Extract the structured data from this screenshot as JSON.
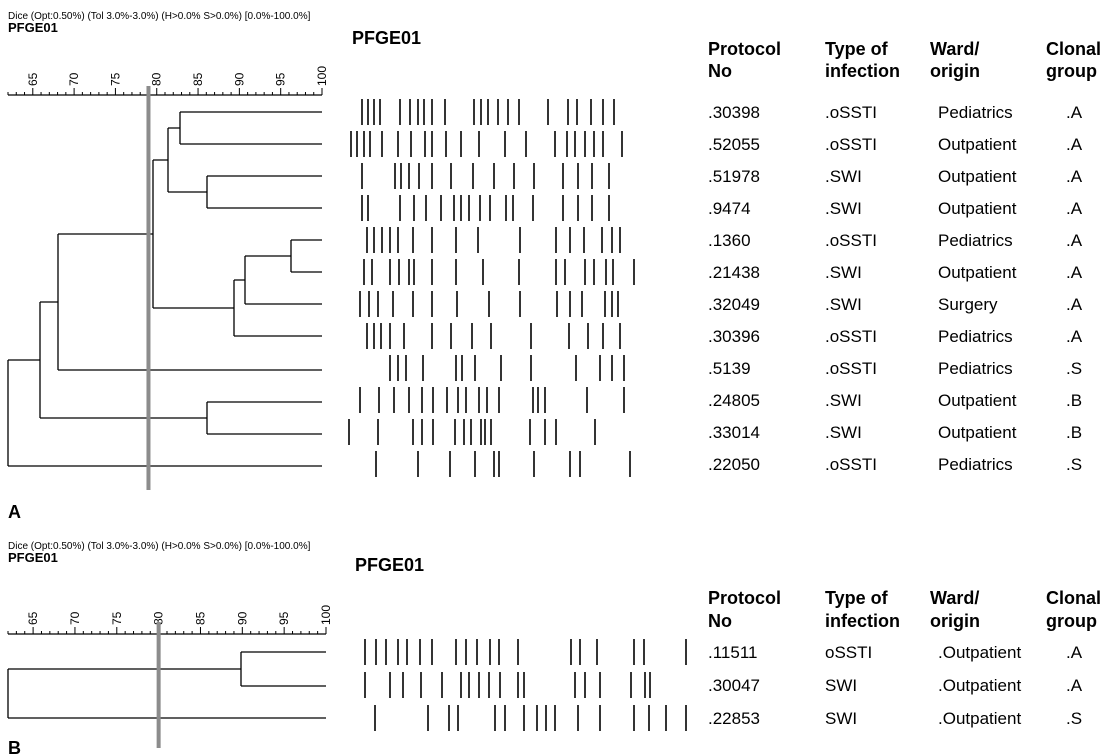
{
  "panels": [
    {
      "panel_label": "A",
      "params": "Dice (Opt:0.50%) (Tol 3.0%-3.0%) (H>0.0% S>0.0%) [0.0%-100.0%]",
      "experiment_label": "PFGE01",
      "gel_label": "PFGE01",
      "scale_ticks": [
        "65",
        "70",
        "75",
        "80",
        "85",
        "90",
        "95",
        "100"
      ],
      "cutoff_value": 79,
      "columns": [
        {
          "line1": "Protocol",
          "line2": "No"
        },
        {
          "line1": "Type of",
          "line2": "infection"
        },
        {
          "line1": "Ward/",
          "line2": "origin"
        },
        {
          "line1": "Clonal",
          "line2": "group"
        }
      ],
      "rows": [
        {
          "protocol": ".30398",
          "infection": ".oSSTI",
          "ward": "Pediatrics",
          "group": ".A"
        },
        {
          "protocol": ".52055",
          "infection": ".oSSTI",
          "ward": "Outpatient",
          "group": ".A"
        },
        {
          "protocol": ".51978",
          "infection": ".SWI",
          "ward": "Outpatient",
          "group": ".A"
        },
        {
          "protocol": ".9474",
          "infection": ".SWI",
          "ward": "Outpatient",
          "group": ".A"
        },
        {
          "protocol": ".1360",
          "infection": ".oSSTI",
          "ward": "Pediatrics",
          "group": ".A"
        },
        {
          "protocol": ".21438",
          "infection": ".SWI",
          "ward": "Outpatient",
          "group": ".A"
        },
        {
          "protocol": ".32049",
          "infection": ".SWI",
          "ward": "Surgery",
          "group": ".A"
        },
        {
          "protocol": ".30396",
          "infection": ".oSSTI",
          "ward": "Pediatrics",
          "group": ".A"
        },
        {
          "protocol": ".5139",
          "infection": ".oSSTI",
          "ward": "Pediatrics",
          "group": ".S"
        },
        {
          "protocol": ".24805",
          "infection": ".SWI",
          "ward": "Outpatient",
          "group": ".B"
        },
        {
          "protocol": ".33014",
          "infection": ".SWI",
          "ward": "Outpatient",
          "group": ".B"
        },
        {
          "protocol": ".22050",
          "infection": ".oSSTI",
          "ward": "Pediatrics",
          "group": ".S"
        }
      ]
    },
    {
      "panel_label": "B",
      "params": "Dice (Opt:0.50%) (Tol 3.0%-3.0%) (H>0.0% S>0.0%) [0.0%-100.0%]",
      "experiment_label": "PFGE01",
      "gel_label": "PFGE01",
      "scale_ticks": [
        "65",
        "70",
        "75",
        "80",
        "85",
        "90",
        "95",
        "100"
      ],
      "cutoff_value": 80,
      "columns": [
        {
          "line1": "Protocol",
          "line2": "No"
        },
        {
          "line1": "Type of",
          "line2": "infection"
        },
        {
          "line1": "Ward/",
          "line2": "origin"
        },
        {
          "line1": "Clonal",
          "line2": "group"
        }
      ],
      "rows": [
        {
          "protocol": ".11511",
          "infection": "oSSTI",
          "ward": ".Outpatient",
          "group": ".A"
        },
        {
          "protocol": ".30047",
          "infection": "SWI",
          "ward": ".Outpatient",
          "group": ".A"
        },
        {
          "protocol": ".22853",
          "infection": "SWI",
          "ward": ".Outpatient",
          "group": ".S"
        }
      ]
    }
  ]
}
